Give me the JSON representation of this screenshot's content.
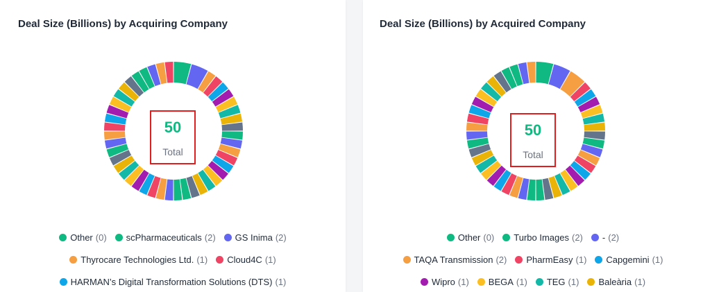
{
  "left": {
    "title": "Deal Size (Billions) by Acquiring Company",
    "center_value": "50",
    "center_label": "Total",
    "legend_rows": [
      [
        {
          "label": "Other",
          "count": "(0)",
          "color": "#10b981"
        },
        {
          "label": "scPharmaceuticals",
          "count": "(2)",
          "color": "#10b981"
        },
        {
          "label": "GS Inima",
          "count": "(2)",
          "color": "#6366f1"
        }
      ],
      [
        {
          "label": "Thyrocare Technologies Ltd.",
          "count": "(1)",
          "color": "#f59e42"
        },
        {
          "label": "Cloud4C",
          "count": "(1)",
          "color": "#ef4464"
        }
      ],
      [
        {
          "label": "HARMAN’s Digital Transformation Solutions (DTS)",
          "count": "(1)",
          "color": "#0ea5e9"
        }
      ]
    ]
  },
  "right": {
    "title": "Deal Size (Billions) by Acquired Company",
    "center_value": "50",
    "center_label": "Total",
    "legend_rows": [
      [
        {
          "label": "Other",
          "count": "(0)",
          "color": "#10b981"
        },
        {
          "label": "Turbo Images",
          "count": "(2)",
          "color": "#10b981"
        },
        {
          "label": "-",
          "count": "(2)",
          "color": "#6366f1"
        }
      ],
      [
        {
          "label": "TAQA Transmission",
          "count": "(2)",
          "color": "#f59e42"
        },
        {
          "label": "PharmEasy",
          "count": "(1)",
          "color": "#ef4464"
        },
        {
          "label": "Capgemini",
          "count": "(1)",
          "color": "#0ea5e9"
        }
      ],
      [
        {
          "label": "Wipro",
          "count": "(1)",
          "color": "#a21caf"
        },
        {
          "label": "BEGA",
          "count": "(1)",
          "color": "#fbbf24"
        },
        {
          "label": "TEG",
          "count": "(1)",
          "color": "#14b8a6"
        },
        {
          "label": "Baleària",
          "count": "(1)",
          "color": "#eab308"
        }
      ]
    ]
  },
  "chart_data": [
    {
      "type": "pie",
      "title": "Deal Size (Billions) by Acquiring Company",
      "total": 50,
      "slice_counts": [
        0,
        2,
        2,
        1,
        1,
        1,
        1,
        1,
        1,
        1,
        1,
        1,
        1,
        1,
        1,
        1,
        1,
        1,
        1,
        1,
        1,
        1,
        1,
        1,
        1,
        1,
        1,
        1,
        1,
        1,
        1,
        1,
        1,
        1,
        1,
        1,
        1,
        1,
        1,
        1,
        1,
        1,
        1,
        1,
        1,
        1,
        1
      ],
      "palette": [
        "#10b981",
        "#10b981",
        "#6366f1",
        "#f59e42",
        "#ef4464",
        "#0ea5e9",
        "#a21caf",
        "#fbbf24",
        "#14b8a6",
        "#eab308",
        "#64748b",
        "#10b981",
        "#6366f1",
        "#f59e42",
        "#ef4464",
        "#0ea5e9",
        "#a21caf",
        "#fbbf24",
        "#14b8a6",
        "#eab308",
        "#64748b"
      ]
    },
    {
      "type": "pie",
      "title": "Deal Size (Billions) by Acquired Company",
      "total": 50,
      "slice_counts": [
        0,
        2,
        2,
        2,
        1,
        1,
        1,
        1,
        1,
        1,
        1,
        1,
        1,
        1,
        1,
        1,
        1,
        1,
        1,
        1,
        1,
        1,
        1,
        1,
        1,
        1,
        1,
        1,
        1,
        1,
        1,
        1,
        1,
        1,
        1,
        1,
        1,
        1,
        1,
        1,
        1,
        1,
        1,
        1,
        1,
        1
      ],
      "palette": [
        "#10b981",
        "#10b981",
        "#6366f1",
        "#f59e42",
        "#ef4464",
        "#0ea5e9",
        "#a21caf",
        "#fbbf24",
        "#14b8a6",
        "#eab308",
        "#64748b",
        "#10b981",
        "#6366f1",
        "#f59e42",
        "#ef4464",
        "#0ea5e9",
        "#a21caf",
        "#fbbf24",
        "#14b8a6",
        "#eab308",
        "#64748b"
      ]
    }
  ]
}
